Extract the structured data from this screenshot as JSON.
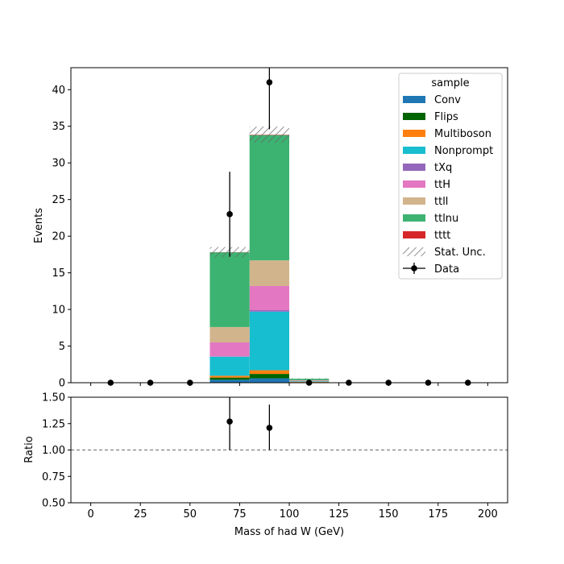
{
  "chart_data": {
    "type": "bar",
    "xlabel": "Mass of had W (GeV)",
    "ylabel_top": "Events",
    "ylabel_bottom": "Ratio",
    "xlim": [
      -10,
      210
    ],
    "ylim_top": [
      0,
      43
    ],
    "ylim_bottom": [
      0.5,
      1.5
    ],
    "x_ticks": [
      0,
      25,
      50,
      75,
      100,
      125,
      150,
      175,
      200
    ],
    "y_ticks_top": [
      0,
      5,
      10,
      15,
      20,
      25,
      30,
      35,
      40
    ],
    "y_ticks_bottom": [
      0.5,
      0.75,
      1.0,
      1.25,
      1.5
    ],
    "y_ticks_bottom_labels": [
      "0.50",
      "0.75",
      "1.00",
      "1.25",
      "1.50"
    ],
    "bin_edges": [
      0,
      20,
      40,
      60,
      80,
      100,
      120,
      140,
      160,
      180,
      200
    ],
    "stack": [
      {
        "name": "Conv",
        "color": "#1f77b4",
        "values": [
          0,
          0,
          0,
          0.4,
          0.6,
          0.05,
          0,
          0,
          0,
          0
        ]
      },
      {
        "name": "Flips",
        "color": "#006400",
        "values": [
          0,
          0,
          0,
          0.3,
          0.6,
          0.03,
          0,
          0,
          0,
          0
        ]
      },
      {
        "name": "Multiboson",
        "color": "#ff7f0e",
        "values": [
          0,
          0,
          0,
          0.25,
          0.5,
          0.05,
          0,
          0,
          0,
          0
        ]
      },
      {
        "name": "Nonprompt",
        "color": "#17becf",
        "values": [
          0,
          0,
          0,
          2.6,
          8.0,
          0.07,
          0,
          0,
          0,
          0
        ]
      },
      {
        "name": "tXq",
        "color": "#9467bd",
        "values": [
          0,
          0,
          0,
          0.05,
          0.2,
          0.02,
          0,
          0,
          0,
          0
        ]
      },
      {
        "name": "ttH",
        "color": "#e377c2",
        "values": [
          0,
          0,
          0,
          1.9,
          3.3,
          0.05,
          0,
          0,
          0,
          0
        ]
      },
      {
        "name": "ttll",
        "color": "#d2b48c",
        "values": [
          0,
          0,
          0,
          2.1,
          3.5,
          0.08,
          0,
          0,
          0,
          0
        ]
      },
      {
        "name": "ttlnu",
        "color": "#3cb371",
        "values": [
          0,
          0,
          0,
          10.2,
          17.1,
          0.2,
          0,
          0,
          0,
          0
        ]
      },
      {
        "name": "tttt",
        "color": "#d62728",
        "values": [
          0,
          0,
          0,
          0.02,
          0.05,
          0,
          0,
          0,
          0,
          0
        ]
      }
    ],
    "stat_unc": [
      0,
      0,
      0,
      0.7,
      1.1,
      0.05,
      0,
      0,
      0,
      0
    ],
    "data": {
      "x": [
        10,
        30,
        50,
        70,
        90,
        110,
        130,
        150,
        170,
        190
      ],
      "y": [
        0,
        0,
        0,
        23,
        41,
        0,
        0,
        0,
        0,
        0
      ],
      "yerr": [
        0,
        0,
        0,
        5.8,
        6.4,
        0,
        0,
        0,
        0,
        0
      ]
    },
    "ratio": {
      "x": [
        70,
        90
      ],
      "y": [
        1.27,
        1.21
      ],
      "ylo": [
        1.0,
        1.0
      ],
      "yhi": [
        1.5,
        1.43
      ]
    },
    "ratio_ref": 1.0,
    "legend": {
      "title": "sample",
      "placement": "top-right",
      "entries": [
        "Conv",
        "Flips",
        "Multiboson",
        "Nonprompt",
        "tXq",
        "ttH",
        "ttll",
        "ttlnu",
        "tttt",
        "Stat. Unc.",
        "Data"
      ]
    }
  }
}
